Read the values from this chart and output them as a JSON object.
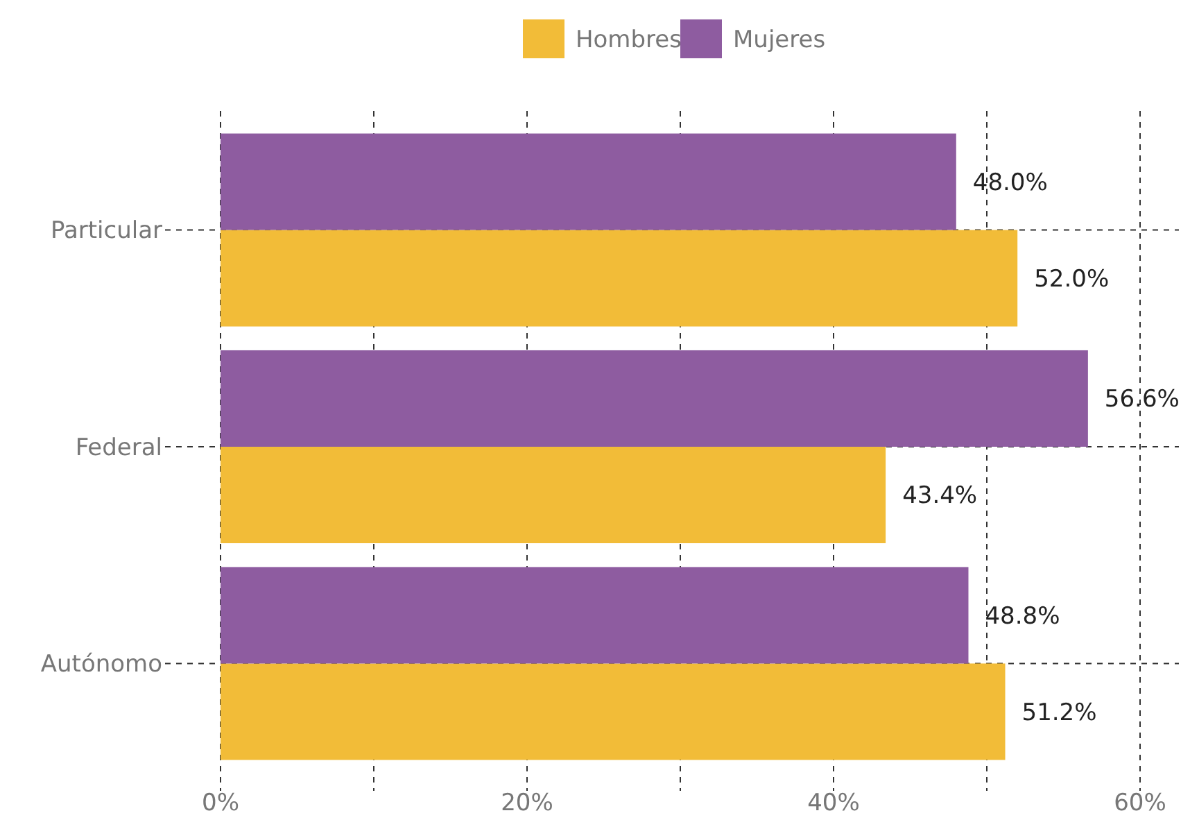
{
  "chart_data": {
    "type": "bar",
    "orientation": "horizontal",
    "categories": [
      "Particular",
      "Federal",
      "Autónomo"
    ],
    "series": [
      {
        "name": "Hombres",
        "color": "#f2bc38",
        "values": [
          52.0,
          43.4,
          51.2
        ],
        "value_labels": [
          "52.0%",
          "43.4%",
          "51.2%"
        ]
      },
      {
        "name": "Mujeres",
        "color": "#8e5ca0",
        "values": [
          48.0,
          56.6,
          48.8
        ],
        "value_labels": [
          "48.0%",
          "56.6%",
          "48.8%"
        ]
      }
    ],
    "xlim": [
      0,
      60
    ],
    "xticks": [
      {
        "value": 0,
        "label": "0%"
      },
      {
        "value": 10,
        "label": null
      },
      {
        "value": 20,
        "label": "20%"
      },
      {
        "value": 30,
        "label": null
      },
      {
        "value": 40,
        "label": "40%"
      },
      {
        "value": 50,
        "label": null
      },
      {
        "value": 60,
        "label": "60%"
      }
    ],
    "grid": true,
    "legend": "top"
  }
}
